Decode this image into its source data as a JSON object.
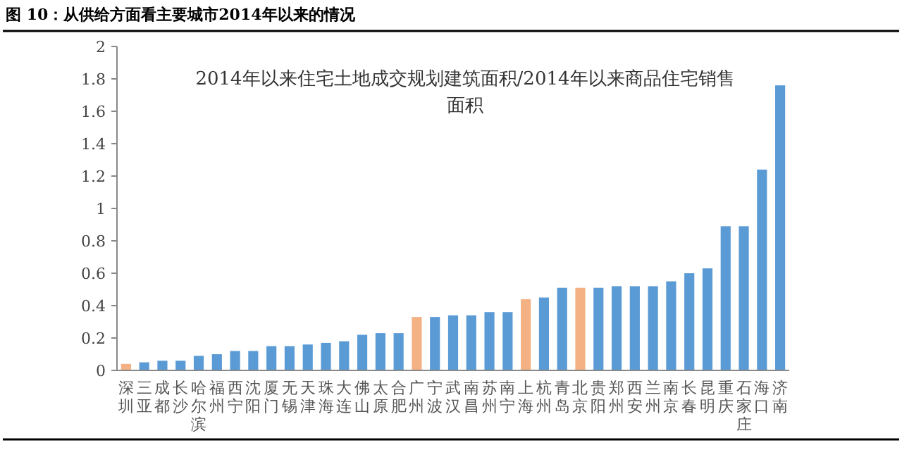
{
  "chart_data": {
    "type": "bar",
    "title": "图 10：从供给方面看主要城市2014年以来的情况",
    "subtitle": "2014年以来住宅土地成交规划建筑面积/2014年以来商品住宅销售面积",
    "categories": [
      "深圳",
      "三亚",
      "成都",
      "长沙",
      "哈尔滨",
      "福州",
      "西宁",
      "沈阳",
      "厦门",
      "无锡",
      "天津",
      "珠海",
      "大连",
      "佛山",
      "太原",
      "合肥",
      "广州",
      "宁波",
      "武汉",
      "南昌",
      "苏州",
      "南宁",
      "上海",
      "杭州",
      "青岛",
      "北京",
      "贵阳",
      "郑州",
      "西安",
      "兰州",
      "南京",
      "长春",
      "昆明",
      "重庆",
      "石家庄",
      "海口",
      "济南"
    ],
    "values": [
      0.04,
      0.05,
      0.06,
      0.06,
      0.09,
      0.1,
      0.12,
      0.12,
      0.15,
      0.15,
      0.16,
      0.17,
      0.18,
      0.22,
      0.23,
      0.23,
      0.33,
      0.33,
      0.34,
      0.34,
      0.36,
      0.36,
      0.44,
      0.45,
      0.51,
      0.51,
      0.51,
      0.52,
      0.52,
      0.52,
      0.55,
      0.6,
      0.63,
      0.89,
      0.89,
      1.24,
      1.76
    ],
    "colors": [
      "#f4b183",
      "#5b9bd5",
      "#5b9bd5",
      "#5b9bd5",
      "#5b9bd5",
      "#5b9bd5",
      "#5b9bd5",
      "#5b9bd5",
      "#5b9bd5",
      "#5b9bd5",
      "#5b9bd5",
      "#5b9bd5",
      "#5b9bd5",
      "#5b9bd5",
      "#5b9bd5",
      "#5b9bd5",
      "#f4b183",
      "#5b9bd5",
      "#5b9bd5",
      "#5b9bd5",
      "#5b9bd5",
      "#5b9bd5",
      "#f4b183",
      "#5b9bd5",
      "#5b9bd5",
      "#f4b183",
      "#5b9bd5",
      "#5b9bd5",
      "#5b9bd5",
      "#5b9bd5",
      "#5b9bd5",
      "#5b9bd5",
      "#5b9bd5",
      "#5b9bd5",
      "#5b9bd5",
      "#5b9bd5",
      "#5b9bd5"
    ],
    "ylim": [
      0,
      2
    ],
    "yticks": [
      0,
      0.2,
      0.4,
      0.6,
      0.8,
      1,
      1.2,
      1.4,
      1.6,
      1.8,
      2
    ],
    "grid": false
  }
}
